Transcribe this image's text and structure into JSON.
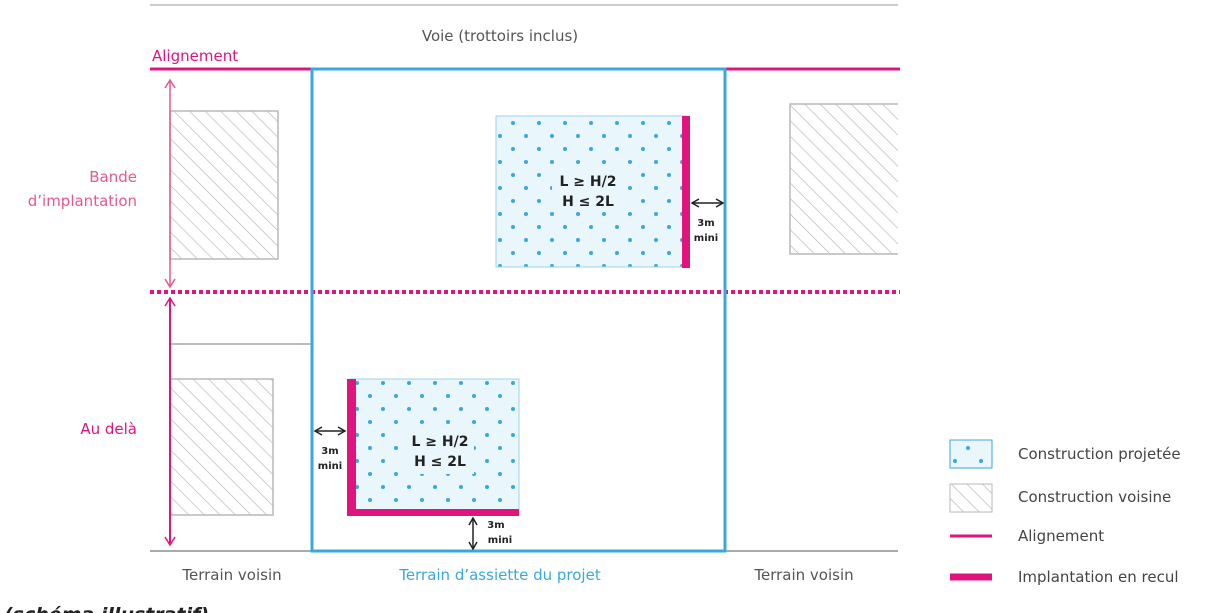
{
  "labels": {
    "voie": "Voie (trottoirs inclus)",
    "alignement": "Alignement",
    "bande_line1": "Bande",
    "bande_line2": "d’implantation",
    "au_dela": "Au delà",
    "terrain_voisin_left": "Terrain voisin",
    "terrain_assiette": "Terrain d’assiette du projet",
    "terrain_voisin_right": "Terrain voisin",
    "footer": "(schéma illustratif)"
  },
  "building_top": {
    "rule_line1": "L ≥ H/2",
    "rule_line2": "H ≤ 2L",
    "dist_line1": "3m",
    "dist_line2": "mini"
  },
  "building_bottom": {
    "rule_line1": "L ≥ H/2",
    "rule_line2": "H ≤ 2L",
    "dist_left_line1": "3m",
    "dist_left_line2": "mini",
    "dist_bottom_line1": "3m",
    "dist_bottom_line2": "mini"
  },
  "legend": [
    {
      "icon": "dotted-swatch-icon",
      "label": "Construction projetée"
    },
    {
      "icon": "hatched-swatch-icon",
      "label": "Construction voisine"
    },
    {
      "icon": "thin-magenta-line-icon",
      "label": "Alignement"
    },
    {
      "icon": "thick-magenta-line-icon",
      "label": "Implantation en recul"
    }
  ],
  "colors": {
    "magenta": "#e0147f",
    "pink_label": "#e8578f",
    "blue": "#3aa8dc",
    "dot_fill": "#e9f6fc",
    "dot": "#3aa8dc",
    "hatch": "#b9b9b9",
    "gray_text": "#555555",
    "line_gray": "#777777"
  }
}
